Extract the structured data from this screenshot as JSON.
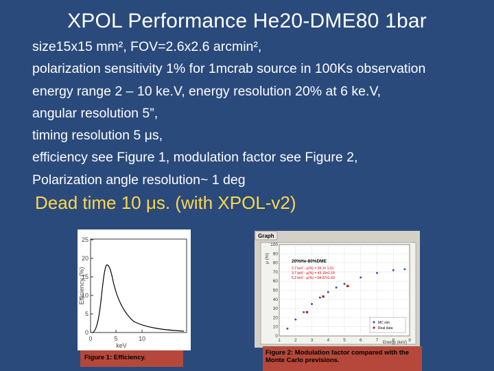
{
  "slide": {
    "title": "XPOL Performance He20-DME80 1bar",
    "lines": [
      "size15x15 mm², FOV=2.6x2.6 arcmin²,",
      "polarization sensitivity 1% for 1mcrab source in 100Ks observation",
      "energy range 2 – 10 ke.V, energy resolution 20% at 6 ke.V,",
      "angular resolution 5”,",
      "timing resolution 5 μs,",
      "efficiency see Figure 1, modulation factor see Figure 2,",
      "Polarization angle resolution~ 1 deg"
    ],
    "highlight": "Dead time 10 μs. (with XPOL-v2)",
    "accent_color": "#ffd84a",
    "background_color": "#2a4a7c"
  },
  "figure1": {
    "caption": "Figure 1: Efficiency.",
    "ylabel": "Efficiency (%)",
    "xlabel": "keV",
    "yticks": [
      "0",
      "5",
      "10",
      "15",
      "20",
      "25"
    ],
    "xticks": [
      "0",
      "5",
      "10"
    ]
  },
  "figure2": {
    "caption": "Figure 2: Modulation factor compared with the Monte Carlo previsions.",
    "window_title": "Graph",
    "ylabel": "μ (%)",
    "xlabel": "Energy (keV)",
    "legend_title": "20%He-80%DME",
    "fit_lines": [
      "2.7 keV - μ(%) = 26.1± 1.31",
      "3.7 keV - μ(%) = 43.10±1.18",
      "5.2 keV - μ(%) = 54.67±1.69"
    ],
    "key": [
      "MC sim",
      "Real data"
    ],
    "yticks": [
      "0",
      "10",
      "20",
      "30",
      "40",
      "50",
      "60",
      "70",
      "80",
      "90",
      "100"
    ],
    "xticks": [
      "1",
      "2",
      "3",
      "4",
      "5",
      "6",
      "7",
      "8",
      "9"
    ],
    "chart_data": {
      "type": "scatter",
      "xlabel": "Energy (keV)",
      "ylabel": "μ (%)",
      "xlim": [
        1,
        9
      ],
      "ylim": [
        0,
        100
      ],
      "series": [
        {
          "name": "MC sim",
          "x": [
            1.5,
            2,
            2.5,
            3,
            3.5,
            4,
            4.5,
            5,
            6,
            7,
            8,
            8.7
          ],
          "y": [
            8,
            18,
            26,
            35,
            42,
            48,
            53,
            57,
            64,
            69,
            72,
            73
          ]
        },
        {
          "name": "Real data",
          "x": [
            2.7,
            3.7,
            5.2
          ],
          "y": [
            26.1,
            43.1,
            54.67
          ]
        }
      ]
    }
  }
}
